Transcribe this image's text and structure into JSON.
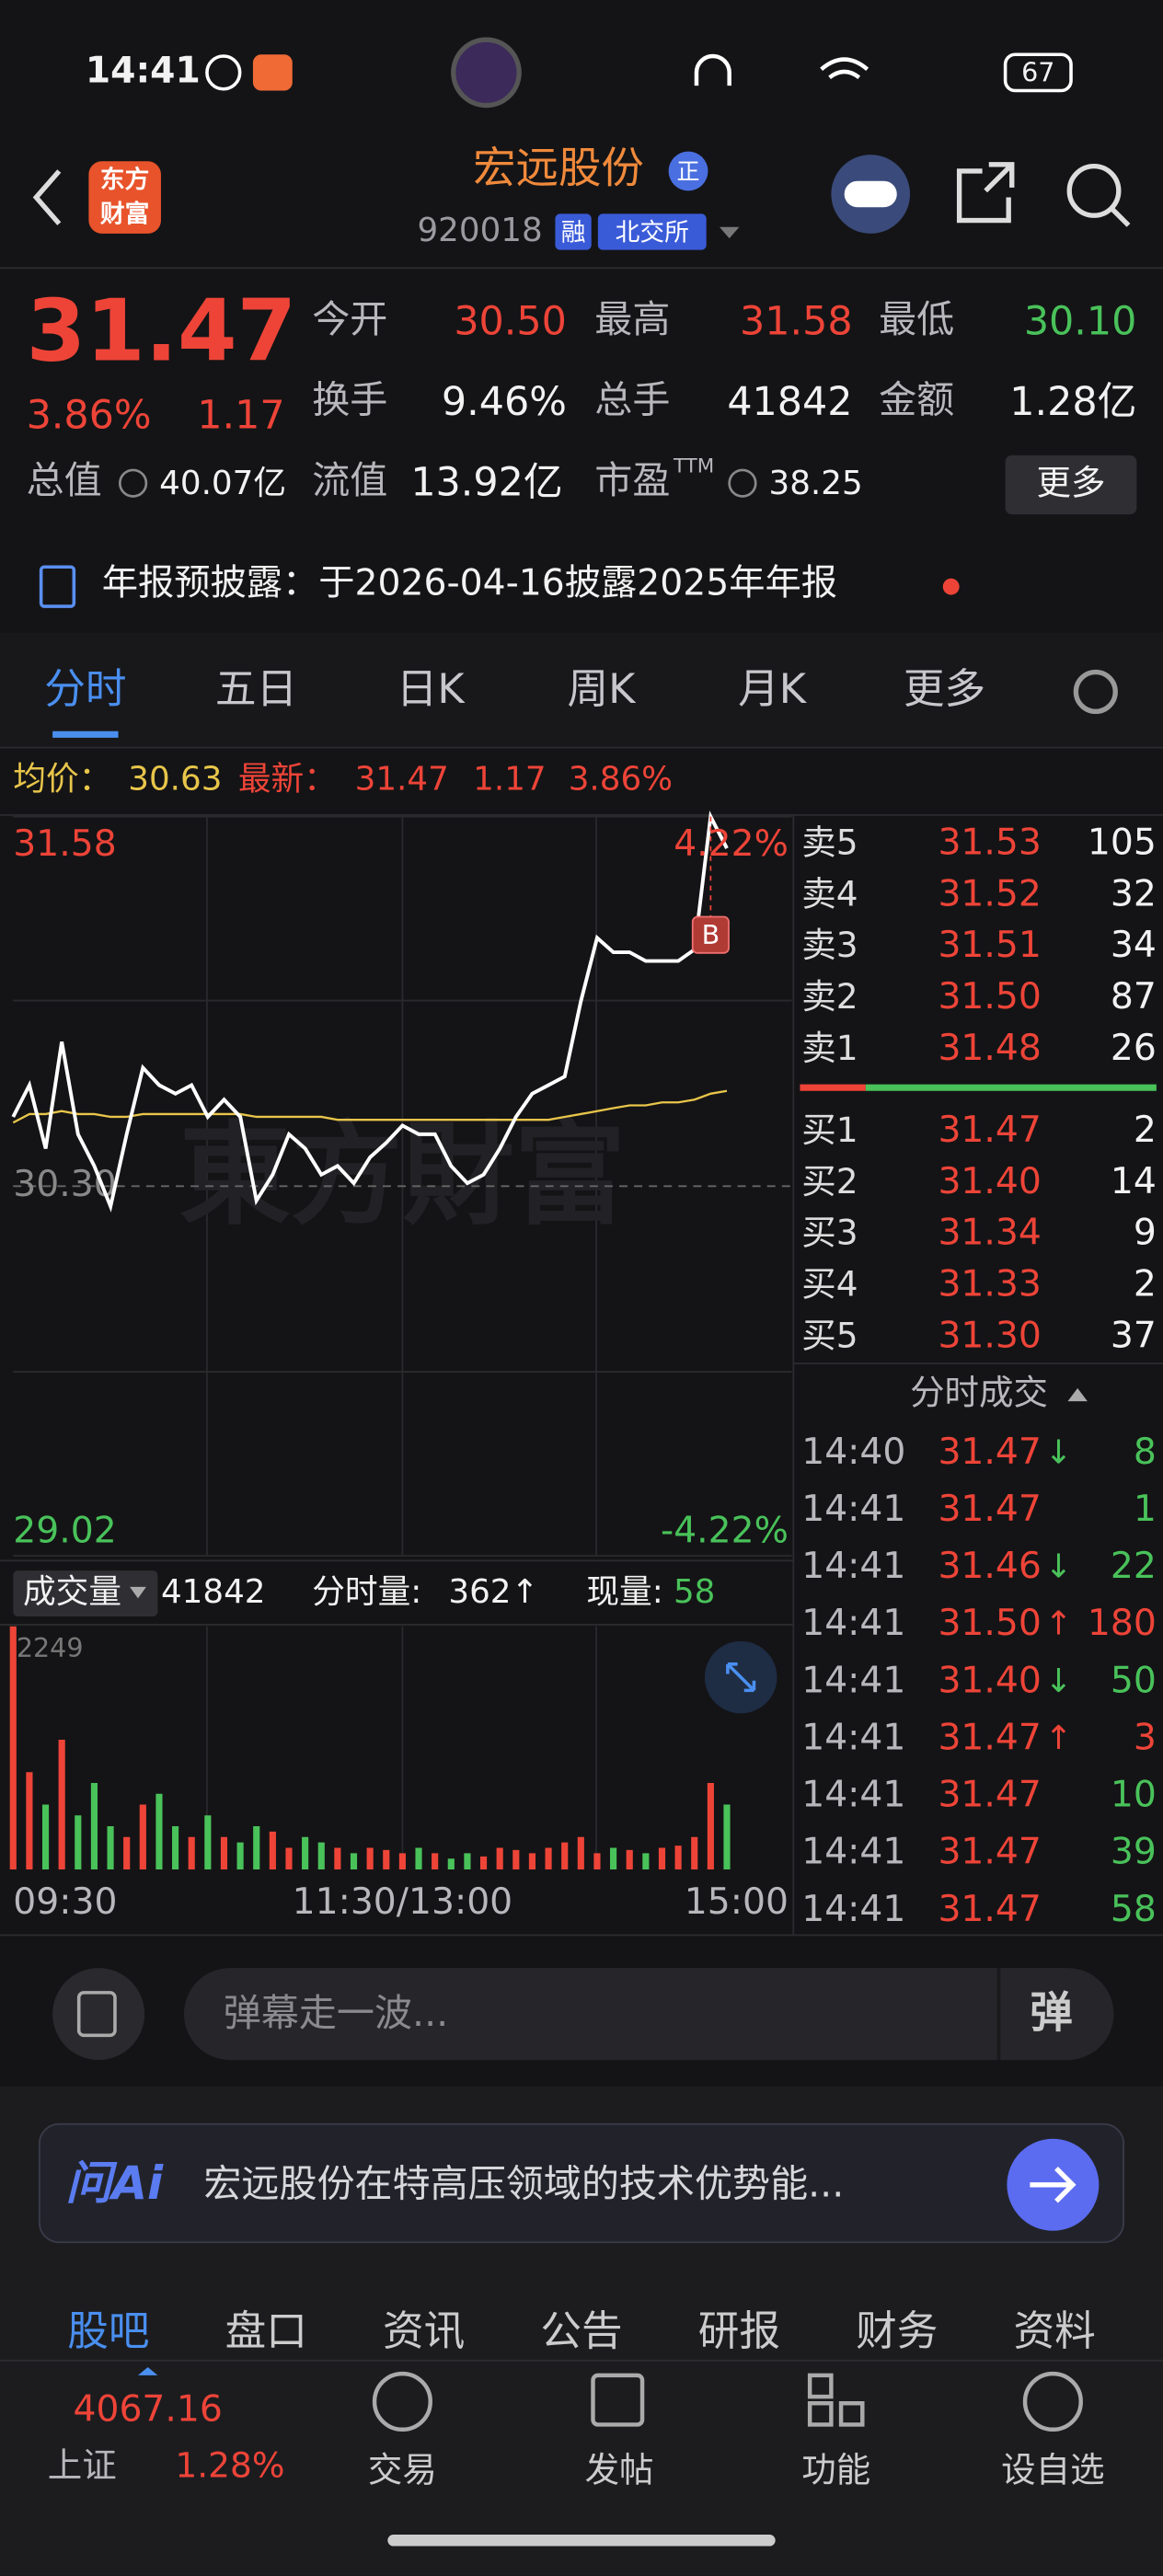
{
  "status": {
    "time": "14:41",
    "battery": "67"
  },
  "header": {
    "logo": [
      "东方",
      "财富"
    ],
    "title": "宏远股份",
    "badge": "正",
    "code": "920018",
    "tags": [
      "融",
      "北交所"
    ]
  },
  "quote": {
    "price": "31.47",
    "change_pct": "3.86%",
    "change": "1.17",
    "stats": [
      [
        {
          "label": "今开",
          "value": "30.50"
        },
        {
          "label": "最高",
          "value": "31.58"
        },
        {
          "label": "最低",
          "value": "30.10"
        }
      ],
      [
        {
          "label": "换手",
          "value": "9.46%"
        },
        {
          "label": "总手",
          "value": "41842"
        },
        {
          "label": "金额",
          "value": "1.28亿"
        }
      ]
    ],
    "total_value": {
      "label": "总值",
      "value": "40.07亿"
    },
    "float_value": {
      "label": "流值",
      "value": "13.92亿"
    },
    "pe": {
      "label": "市盈",
      "sup": "TTM",
      "value": "38.25"
    },
    "more": "更多"
  },
  "notice": "年报预披露：于2026-04-16披露2025年年报",
  "tabs": [
    "分时",
    "五日",
    "日K",
    "周K",
    "月K",
    "更多"
  ],
  "info": {
    "avg_label": "均价：",
    "avg": "30.63",
    "latest_label": "最新：",
    "latest": "31.47",
    "change": "1.17",
    "pct": "3.86%"
  },
  "chart": {
    "ylim": [
      29.02,
      31.58
    ],
    "yticks": [
      31.58,
      {
        "value": 30.3,
        "label": "30.30"
      },
      29.02
    ],
    "top_pct": "4.22%",
    "bottom_pct": "-4.22%",
    "marker": "B",
    "prices": [
      30.54,
      30.65,
      30.43,
      30.8,
      30.48,
      30.37,
      30.23,
      30.48,
      30.71,
      30.65,
      30.62,
      30.65,
      30.54,
      30.6,
      30.54,
      30.25,
      30.34,
      30.48,
      30.43,
      30.34,
      30.37,
      30.31,
      30.4,
      30.45,
      30.51,
      30.48,
      30.48,
      30.37,
      30.31,
      30.34,
      30.43,
      30.54,
      30.62,
      30.65,
      30.68,
      30.94,
      31.16,
      31.11,
      31.11,
      31.08,
      31.08,
      31.08,
      31.12,
      31.58,
      31.47
    ],
    "avg": [
      30.52,
      30.55,
      30.55,
      30.56,
      30.55,
      30.55,
      30.54,
      30.54,
      30.55,
      30.55,
      30.55,
      30.55,
      30.55,
      30.55,
      30.55,
      30.54,
      30.54,
      30.54,
      30.54,
      30.54,
      30.53,
      30.53,
      30.53,
      30.53,
      30.53,
      30.53,
      30.53,
      30.53,
      30.53,
      30.53,
      30.53,
      30.53,
      30.53,
      30.53,
      30.54,
      30.55,
      30.56,
      30.57,
      30.58,
      30.58,
      30.59,
      30.59,
      30.6,
      30.62,
      30.63
    ]
  },
  "volume": {
    "label": "成交量",
    "total": "41842",
    "interval_label": "分时量:",
    "interval": "362↑",
    "current_label": "现量:",
    "current": "58",
    "ymax": 2249,
    "values": [
      2249,
      900,
      600,
      1200,
      500,
      800,
      400,
      300,
      600,
      700,
      400,
      300,
      500,
      300,
      250,
      400,
      350,
      200,
      300,
      250,
      200,
      150,
      200,
      180,
      150,
      200,
      150,
      100,
      150,
      120,
      200,
      180,
      150,
      200,
      250,
      300,
      150,
      200,
      180,
      150,
      200,
      220,
      300,
      800,
      600
    ],
    "times": [
      "09:30",
      "11:30/13:00",
      "15:00"
    ]
  },
  "order_book": {
    "asks": [
      {
        "label": "卖5",
        "price": "31.53",
        "qty": "105"
      },
      {
        "label": "卖4",
        "price": "31.52",
        "qty": "32"
      },
      {
        "label": "卖3",
        "price": "31.51",
        "qty": "34"
      },
      {
        "label": "卖2",
        "price": "31.50",
        "qty": "87"
      },
      {
        "label": "卖1",
        "price": "31.48",
        "qty": "26"
      }
    ],
    "bids": [
      {
        "label": "买1",
        "price": "31.47",
        "qty": "2"
      },
      {
        "label": "买2",
        "price": "31.40",
        "qty": "14"
      },
      {
        "label": "买3",
        "price": "31.34",
        "qty": "9"
      },
      {
        "label": "买4",
        "price": "31.33",
        "qty": "2"
      },
      {
        "label": "买5",
        "price": "31.30",
        "qty": "37"
      }
    ]
  },
  "trades": {
    "title": "分时成交",
    "rows": [
      {
        "time": "14:40",
        "price": "31.47",
        "dir": "↓",
        "qty": "8"
      },
      {
        "time": "14:41",
        "price": "31.47",
        "qty": "1"
      },
      {
        "time": "14:41",
        "price": "31.46",
        "dir": "↓",
        "qty": "22"
      },
      {
        "time": "14:41",
        "price": "31.50",
        "dir": "↑",
        "qty": "180"
      },
      {
        "time": "14:41",
        "price": "31.40",
        "dir": "↓",
        "qty": "50"
      },
      {
        "time": "14:41",
        "price": "31.47",
        "dir": "↑",
        "qty": "3"
      },
      {
        "time": "14:41",
        "price": "31.47",
        "qty": "10"
      },
      {
        "time": "14:41",
        "price": "31.47",
        "qty": "39"
      },
      {
        "time": "14:41",
        "price": "31.47",
        "qty": "58"
      }
    ]
  },
  "comment": {
    "placeholder": "弹幕走一波...",
    "danmu": "弹"
  },
  "ai": {
    "logo": "问Ai",
    "text": "宏远股份在特高压领域的技术优势能..."
  },
  "bottom_tabs": [
    "股吧",
    "盘口",
    "资讯",
    "公告",
    "研报",
    "财务",
    "资料"
  ],
  "index": {
    "value": "4067.16",
    "name": "上证",
    "pct": "1.28%"
  },
  "nav": [
    "交易",
    "发帖",
    "功能",
    "设自选"
  ]
}
